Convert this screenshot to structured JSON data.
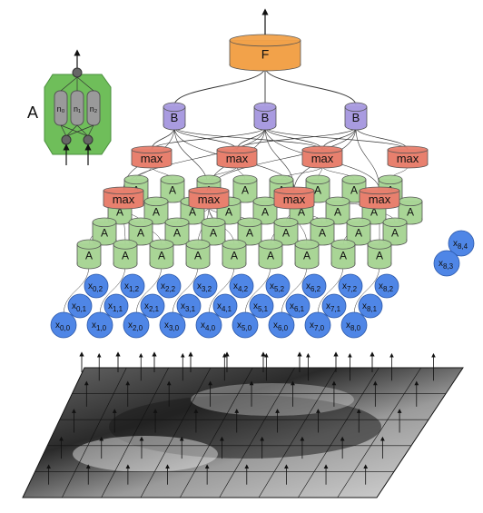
{
  "inset": {
    "label": "A",
    "neurons": [
      "n₀",
      "n₁",
      "n₂"
    ]
  },
  "top_unit": {
    "label": "F"
  },
  "b_units": {
    "label": "B",
    "count": 3
  },
  "max_units": {
    "label": "max",
    "back_row_count": 4,
    "front_row_count": 4
  },
  "a_units": {
    "label": "A"
  },
  "inputs": {
    "symbol": "x",
    "front_row": [
      "0,0",
      "1,0",
      "2,0",
      "3,0",
      "4,0",
      "5,0",
      "6,0",
      "7,0",
      "8,0"
    ],
    "row_1": [
      "0,1",
      "1,1",
      "2,1",
      "3,1",
      "4,1",
      "5,1",
      "6,1",
      "7,1",
      "8,1"
    ],
    "row_2": [
      "0,2",
      "1,2",
      "2,2",
      "3,2",
      "4,2",
      "5,2",
      "6,2",
      "7,2",
      "8,2"
    ],
    "row_3_visible": [
      "8,3"
    ],
    "row_4_visible": [
      "8,4"
    ]
  },
  "colors": {
    "f_unit": "#f2a24a",
    "b_unit": "#a99be0",
    "max_unit": "#e8806e",
    "a_unit": "#a9d596",
    "input_node": "#4f86e6",
    "inset_box": "#6fbe5a"
  }
}
